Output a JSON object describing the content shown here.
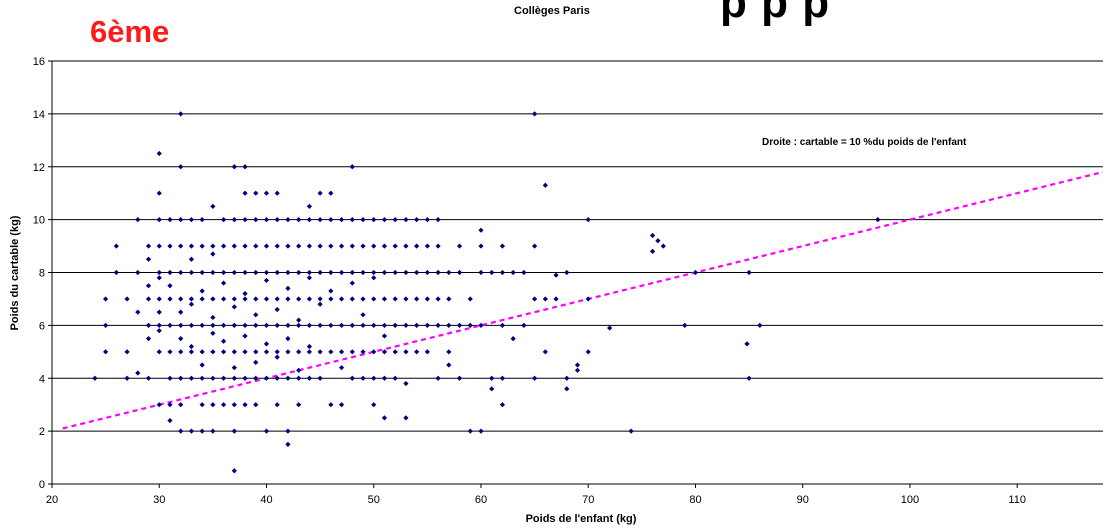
{
  "chart_data": {
    "type": "scatter",
    "subtitle": "Collèges Paris",
    "title_overflow": "p p p",
    "level_label": "6ème",
    "xlabel": "Poids de l'enfant (kg)",
    "ylabel": "Poids du cartable (kg)",
    "xlim": [
      20,
      118
    ],
    "ylim": [
      0,
      16
    ],
    "xticks": [
      20,
      30,
      40,
      50,
      60,
      70,
      80,
      90,
      100,
      110
    ],
    "yticks": [
      0,
      2,
      4,
      6,
      8,
      10,
      12,
      14,
      16
    ],
    "grid": "horizontal",
    "marker_color": "#000080",
    "reference_line": {
      "label": "Droite : cartable = 10 %du poids de l'enfant",
      "slope": 0.1,
      "intercept": 0,
      "color": "#ff00ff",
      "style": "dashed"
    },
    "points": [
      [
        24,
        4
      ],
      [
        25,
        7
      ],
      [
        25,
        5
      ],
      [
        25,
        6
      ],
      [
        26,
        9
      ],
      [
        26,
        8
      ],
      [
        27,
        7
      ],
      [
        27,
        5
      ],
      [
        27,
        4
      ],
      [
        28,
        8
      ],
      [
        28,
        6.5
      ],
      [
        28,
        4.2
      ],
      [
        28,
        10
      ],
      [
        29,
        6
      ],
      [
        29,
        7
      ],
      [
        29,
        9
      ],
      [
        29,
        7.5
      ],
      [
        29,
        4
      ],
      [
        29,
        5.5
      ],
      [
        29,
        8.5
      ],
      [
        30,
        12.5
      ],
      [
        30,
        11
      ],
      [
        30,
        10
      ],
      [
        30,
        9
      ],
      [
        30,
        8
      ],
      [
        30,
        7
      ],
      [
        30,
        6
      ],
      [
        30,
        5
      ],
      [
        30,
        3
      ],
      [
        30,
        7.8
      ],
      [
        30,
        6.5
      ],
      [
        30,
        5.8
      ],
      [
        31,
        10
      ],
      [
        31,
        9
      ],
      [
        31,
        8
      ],
      [
        31,
        7
      ],
      [
        31,
        6
      ],
      [
        31,
        5
      ],
      [
        31,
        4
      ],
      [
        31,
        3
      ],
      [
        31,
        2.4
      ],
      [
        31,
        7.5
      ],
      [
        32,
        14
      ],
      [
        32,
        12
      ],
      [
        32,
        10
      ],
      [
        32,
        9
      ],
      [
        32,
        8
      ],
      [
        32,
        7
      ],
      [
        32,
        6
      ],
      [
        32,
        5
      ],
      [
        32,
        4
      ],
      [
        32,
        3
      ],
      [
        32,
        2
      ],
      [
        32,
        6.5
      ],
      [
        32,
        5.5
      ],
      [
        33,
        10
      ],
      [
        33,
        9
      ],
      [
        33,
        8
      ],
      [
        33,
        7
      ],
      [
        33,
        6
      ],
      [
        33,
        5
      ],
      [
        33,
        4
      ],
      [
        33,
        2
      ],
      [
        33,
        8.5
      ],
      [
        33,
        6.8
      ],
      [
        33,
        5.2
      ],
      [
        34,
        10
      ],
      [
        34,
        9
      ],
      [
        34,
        8
      ],
      [
        34,
        7
      ],
      [
        34,
        6
      ],
      [
        34,
        5
      ],
      [
        34,
        4
      ],
      [
        34,
        3
      ],
      [
        34,
        2
      ],
      [
        34,
        7.3
      ],
      [
        34,
        4.5
      ],
      [
        35,
        10.5
      ],
      [
        35,
        9
      ],
      [
        35,
        8
      ],
      [
        35,
        7
      ],
      [
        35,
        6
      ],
      [
        35,
        5
      ],
      [
        35,
        4
      ],
      [
        35,
        3
      ],
      [
        35,
        2
      ],
      [
        35,
        8.7
      ],
      [
        35,
        6.3
      ],
      [
        35,
        5.7
      ],
      [
        36,
        10
      ],
      [
        36,
        9
      ],
      [
        36,
        8
      ],
      [
        36,
        7
      ],
      [
        36,
        6
      ],
      [
        36,
        5
      ],
      [
        36,
        4
      ],
      [
        36,
        3
      ],
      [
        36,
        7.6
      ],
      [
        36,
        5.4
      ],
      [
        37,
        12
      ],
      [
        37,
        10
      ],
      [
        37,
        9
      ],
      [
        37,
        8
      ],
      [
        37,
        7
      ],
      [
        37,
        6
      ],
      [
        37,
        5
      ],
      [
        37,
        4
      ],
      [
        37,
        3
      ],
      [
        37,
        2
      ],
      [
        37,
        0.5
      ],
      [
        37,
        6.7
      ],
      [
        37,
        4.4
      ],
      [
        38,
        12
      ],
      [
        38,
        11
      ],
      [
        38,
        10
      ],
      [
        38,
        9
      ],
      [
        38,
        8
      ],
      [
        38,
        7
      ],
      [
        38,
        6
      ],
      [
        38,
        5
      ],
      [
        38,
        4
      ],
      [
        38,
        3
      ],
      [
        38,
        7.2
      ],
      [
        38,
        5.6
      ],
      [
        39,
        11
      ],
      [
        39,
        10
      ],
      [
        39,
        9
      ],
      [
        39,
        8
      ],
      [
        39,
        7
      ],
      [
        39,
        6
      ],
      [
        39,
        5
      ],
      [
        39,
        4
      ],
      [
        39,
        3
      ],
      [
        39,
        6.4
      ],
      [
        39,
        4.6
      ],
      [
        40,
        11
      ],
      [
        40,
        10
      ],
      [
        40,
        9
      ],
      [
        40,
        8
      ],
      [
        40,
        7
      ],
      [
        40,
        6
      ],
      [
        40,
        5
      ],
      [
        40,
        4
      ],
      [
        40,
        2
      ],
      [
        40,
        7.7
      ],
      [
        40,
        5.3
      ],
      [
        41,
        11
      ],
      [
        41,
        10
      ],
      [
        41,
        9
      ],
      [
        41,
        8
      ],
      [
        41,
        7
      ],
      [
        41,
        6
      ],
      [
        41,
        5
      ],
      [
        41,
        4
      ],
      [
        41,
        3
      ],
      [
        41,
        6.6
      ],
      [
        41,
        4.8
      ],
      [
        42,
        10
      ],
      [
        42,
        9
      ],
      [
        42,
        8
      ],
      [
        42,
        7
      ],
      [
        42,
        6
      ],
      [
        42,
        5
      ],
      [
        42,
        4
      ],
      [
        42,
        2
      ],
      [
        42,
        1.5
      ],
      [
        42,
        7.4
      ],
      [
        42,
        5.5
      ],
      [
        43,
        10
      ],
      [
        43,
        9
      ],
      [
        43,
        8
      ],
      [
        43,
        7
      ],
      [
        43,
        6
      ],
      [
        43,
        5
      ],
      [
        43,
        4
      ],
      [
        43,
        3
      ],
      [
        43,
        6.2
      ],
      [
        43,
        4.3
      ],
      [
        44,
        10.5
      ],
      [
        44,
        10
      ],
      [
        44,
        9
      ],
      [
        44,
        8
      ],
      [
        44,
        7
      ],
      [
        44,
        6
      ],
      [
        44,
        5
      ],
      [
        44,
        4
      ],
      [
        44,
        7.8
      ],
      [
        44,
        5.2
      ],
      [
        45,
        11
      ],
      [
        45,
        10
      ],
      [
        45,
        9
      ],
      [
        45,
        8
      ],
      [
        45,
        7
      ],
      [
        45,
        6
      ],
      [
        45,
        5
      ],
      [
        45,
        4
      ],
      [
        45,
        6.8
      ],
      [
        46,
        11
      ],
      [
        46,
        10
      ],
      [
        46,
        9
      ],
      [
        46,
        8
      ],
      [
        46,
        7
      ],
      [
        46,
        6
      ],
      [
        46,
        5
      ],
      [
        46,
        3
      ],
      [
        46,
        7.3
      ],
      [
        47,
        10
      ],
      [
        47,
        9
      ],
      [
        47,
        8
      ],
      [
        47,
        7
      ],
      [
        47,
        6
      ],
      [
        47,
        5
      ],
      [
        47,
        3
      ],
      [
        47,
        4.4
      ],
      [
        48,
        12
      ],
      [
        48,
        10
      ],
      [
        48,
        9
      ],
      [
        48,
        8
      ],
      [
        48,
        7
      ],
      [
        48,
        6
      ],
      [
        48,
        5
      ],
      [
        48,
        4
      ],
      [
        48,
        7.6
      ],
      [
        49,
        10
      ],
      [
        49,
        9
      ],
      [
        49,
        8
      ],
      [
        49,
        7
      ],
      [
        49,
        6
      ],
      [
        49,
        5
      ],
      [
        49,
        4
      ],
      [
        49,
        6.4
      ],
      [
        50,
        10
      ],
      [
        50,
        9
      ],
      [
        50,
        8
      ],
      [
        50,
        7
      ],
      [
        50,
        6
      ],
      [
        50,
        5
      ],
      [
        50,
        4
      ],
      [
        50,
        3
      ],
      [
        50,
        7.8
      ],
      [
        51,
        10
      ],
      [
        51,
        9
      ],
      [
        51,
        8
      ],
      [
        51,
        7
      ],
      [
        51,
        6
      ],
      [
        51,
        5
      ],
      [
        51,
        4
      ],
      [
        51,
        2.5
      ],
      [
        51,
        5.6
      ],
      [
        52,
        10
      ],
      [
        52,
        9
      ],
      [
        52,
        8
      ],
      [
        52,
        7
      ],
      [
        52,
        6
      ],
      [
        52,
        5
      ],
      [
        52,
        4
      ],
      [
        53,
        10
      ],
      [
        53,
        9
      ],
      [
        53,
        8
      ],
      [
        53,
        7
      ],
      [
        53,
        6
      ],
      [
        53,
        5
      ],
      [
        53,
        3.8
      ],
      [
        53,
        2.5
      ],
      [
        54,
        10
      ],
      [
        54,
        9
      ],
      [
        54,
        8
      ],
      [
        54,
        7
      ],
      [
        54,
        6
      ],
      [
        54,
        5
      ],
      [
        55,
        10
      ],
      [
        55,
        9
      ],
      [
        55,
        8
      ],
      [
        55,
        7
      ],
      [
        55,
        6
      ],
      [
        55,
        5
      ],
      [
        56,
        10
      ],
      [
        56,
        9
      ],
      [
        56,
        8
      ],
      [
        56,
        7
      ],
      [
        56,
        6
      ],
      [
        56,
        4
      ],
      [
        57,
        8
      ],
      [
        57,
        7
      ],
      [
        57,
        6
      ],
      [
        57,
        5
      ],
      [
        57,
        4.5
      ],
      [
        58,
        9
      ],
      [
        58,
        8
      ],
      [
        58,
        6
      ],
      [
        58,
        4
      ],
      [
        59,
        7
      ],
      [
        59,
        6
      ],
      [
        59,
        2
      ],
      [
        60,
        9.6
      ],
      [
        60,
        9
      ],
      [
        60,
        8
      ],
      [
        60,
        6
      ],
      [
        60,
        2
      ],
      [
        61,
        8
      ],
      [
        61,
        4
      ],
      [
        61,
        3.6
      ],
      [
        62,
        9
      ],
      [
        62,
        8
      ],
      [
        62,
        6
      ],
      [
        62,
        4
      ],
      [
        62,
        3
      ],
      [
        63,
        8
      ],
      [
        63,
        5.5
      ],
      [
        64,
        8
      ],
      [
        64,
        6
      ],
      [
        65,
        14
      ],
      [
        65,
        9
      ],
      [
        65,
        7
      ],
      [
        65,
        4
      ],
      [
        66,
        11.3
      ],
      [
        66,
        7
      ],
      [
        66,
        5
      ],
      [
        67,
        7.9
      ],
      [
        67,
        7
      ],
      [
        68,
        8
      ],
      [
        68,
        4
      ],
      [
        68,
        3.6
      ],
      [
        69,
        4.5
      ],
      [
        69,
        4.3
      ],
      [
        70,
        10
      ],
      [
        70,
        7
      ],
      [
        70,
        5
      ],
      [
        72,
        5.9
      ],
      [
        74,
        2
      ],
      [
        76,
        9.4
      ],
      [
        76,
        8.8
      ],
      [
        76.5,
        9.2
      ],
      [
        77,
        9
      ],
      [
        79,
        6
      ],
      [
        80,
        8
      ],
      [
        85,
        8
      ],
      [
        85,
        4
      ],
      [
        84.8,
        5.3
      ],
      [
        86,
        6
      ],
      [
        97,
        10
      ]
    ]
  }
}
